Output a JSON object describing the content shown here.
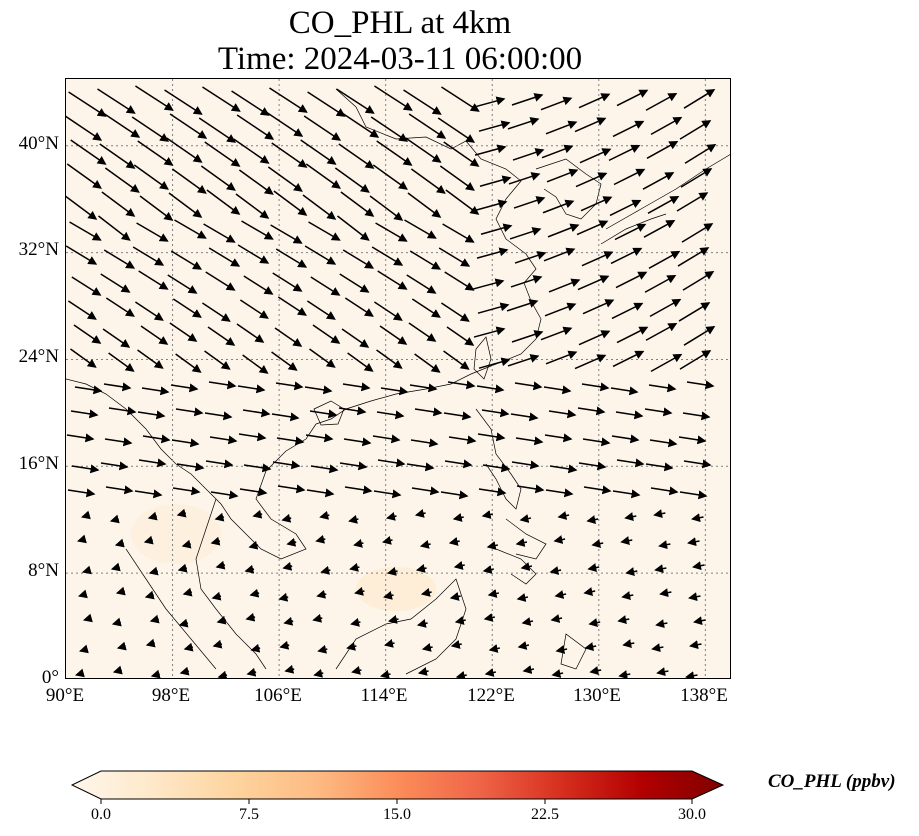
{
  "title": {
    "line1": "CO_PHL at 4km",
    "line2": "Time: 2024-03-11 06:00:00"
  },
  "map": {
    "extent": {
      "lon": [
        90,
        140
      ],
      "lat": [
        0,
        45
      ]
    },
    "gridlines": {
      "style": "dotted",
      "color": "#808080"
    },
    "background_color": "#fdf5ea",
    "lat_ticks": [
      "0°",
      "8°N",
      "16°N",
      "24°N",
      "32°N",
      "40°N"
    ],
    "lon_ticks": [
      "90°E",
      "98°E",
      "106°E",
      "114°E",
      "122°E",
      "130°E",
      "138°E"
    ],
    "field": "CO_PHL",
    "overlay": "wind vectors",
    "regional_pattern": "northwesterly flow north of 24°N turning westerly and northeasterly offshore, weak easterly winds over the South China Sea and Indochina"
  },
  "colorbar": {
    "label": "CO_PHL (ppbv)",
    "ticks": [
      "0.0",
      "7.5",
      "15.0",
      "22.5",
      "30.0"
    ],
    "range": [
      0,
      30
    ],
    "extend": "both",
    "colormap": "OrRd",
    "colors": [
      "#fff7ec",
      "#fee8c8",
      "#fdd49e",
      "#fdbb84",
      "#fc8d59",
      "#ef6548",
      "#d7301f",
      "#b30000",
      "#7f0000"
    ]
  }
}
